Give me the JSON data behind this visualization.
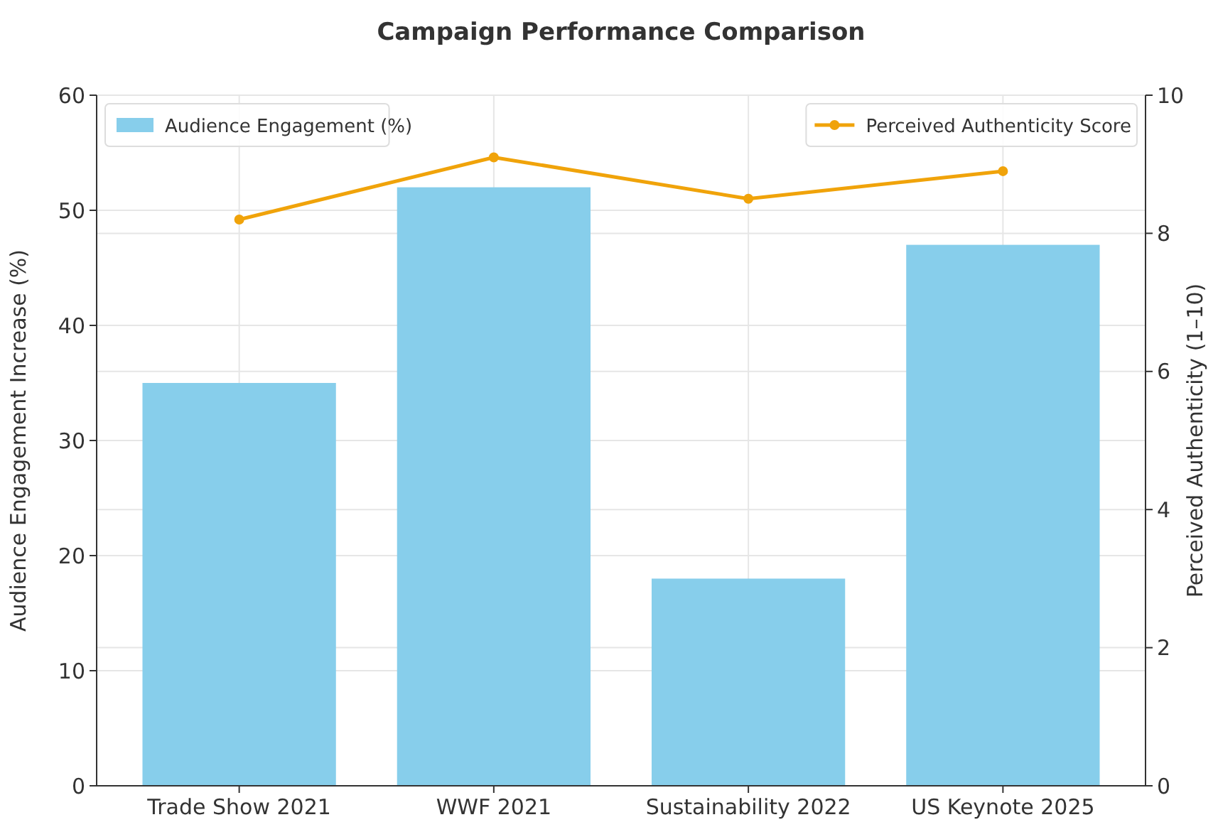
{
  "chart_data": {
    "type": "bar",
    "title": "Campaign Performance Comparison",
    "ylabel": "Audience Engagement Increase (%)",
    "y2label": "Perceived Authenticity (1–10)",
    "categories": [
      "Trade Show 2021",
      "WWF 2021",
      "Sustainability 2022",
      "US Keynote 2025"
    ],
    "series": [
      {
        "name": "Audience Engagement (%)",
        "color": "#87ceeb",
        "values": [
          35,
          52,
          18,
          47
        ]
      },
      {
        "name": "Perceived Authenticity Score",
        "type": "line",
        "axis": "y2",
        "color": "#f0a30a",
        "marker": "circle",
        "values": [
          8.2,
          9.1,
          8.5,
          8.9
        ]
      }
    ],
    "ylim": [
      0,
      60
    ],
    "yticks": [
      0,
      10,
      20,
      30,
      40,
      50,
      60
    ],
    "y2lim": [
      0,
      10
    ],
    "y2ticks": [
      0,
      2,
      4,
      6,
      8,
      10
    ],
    "grid": true,
    "legend": "top"
  }
}
